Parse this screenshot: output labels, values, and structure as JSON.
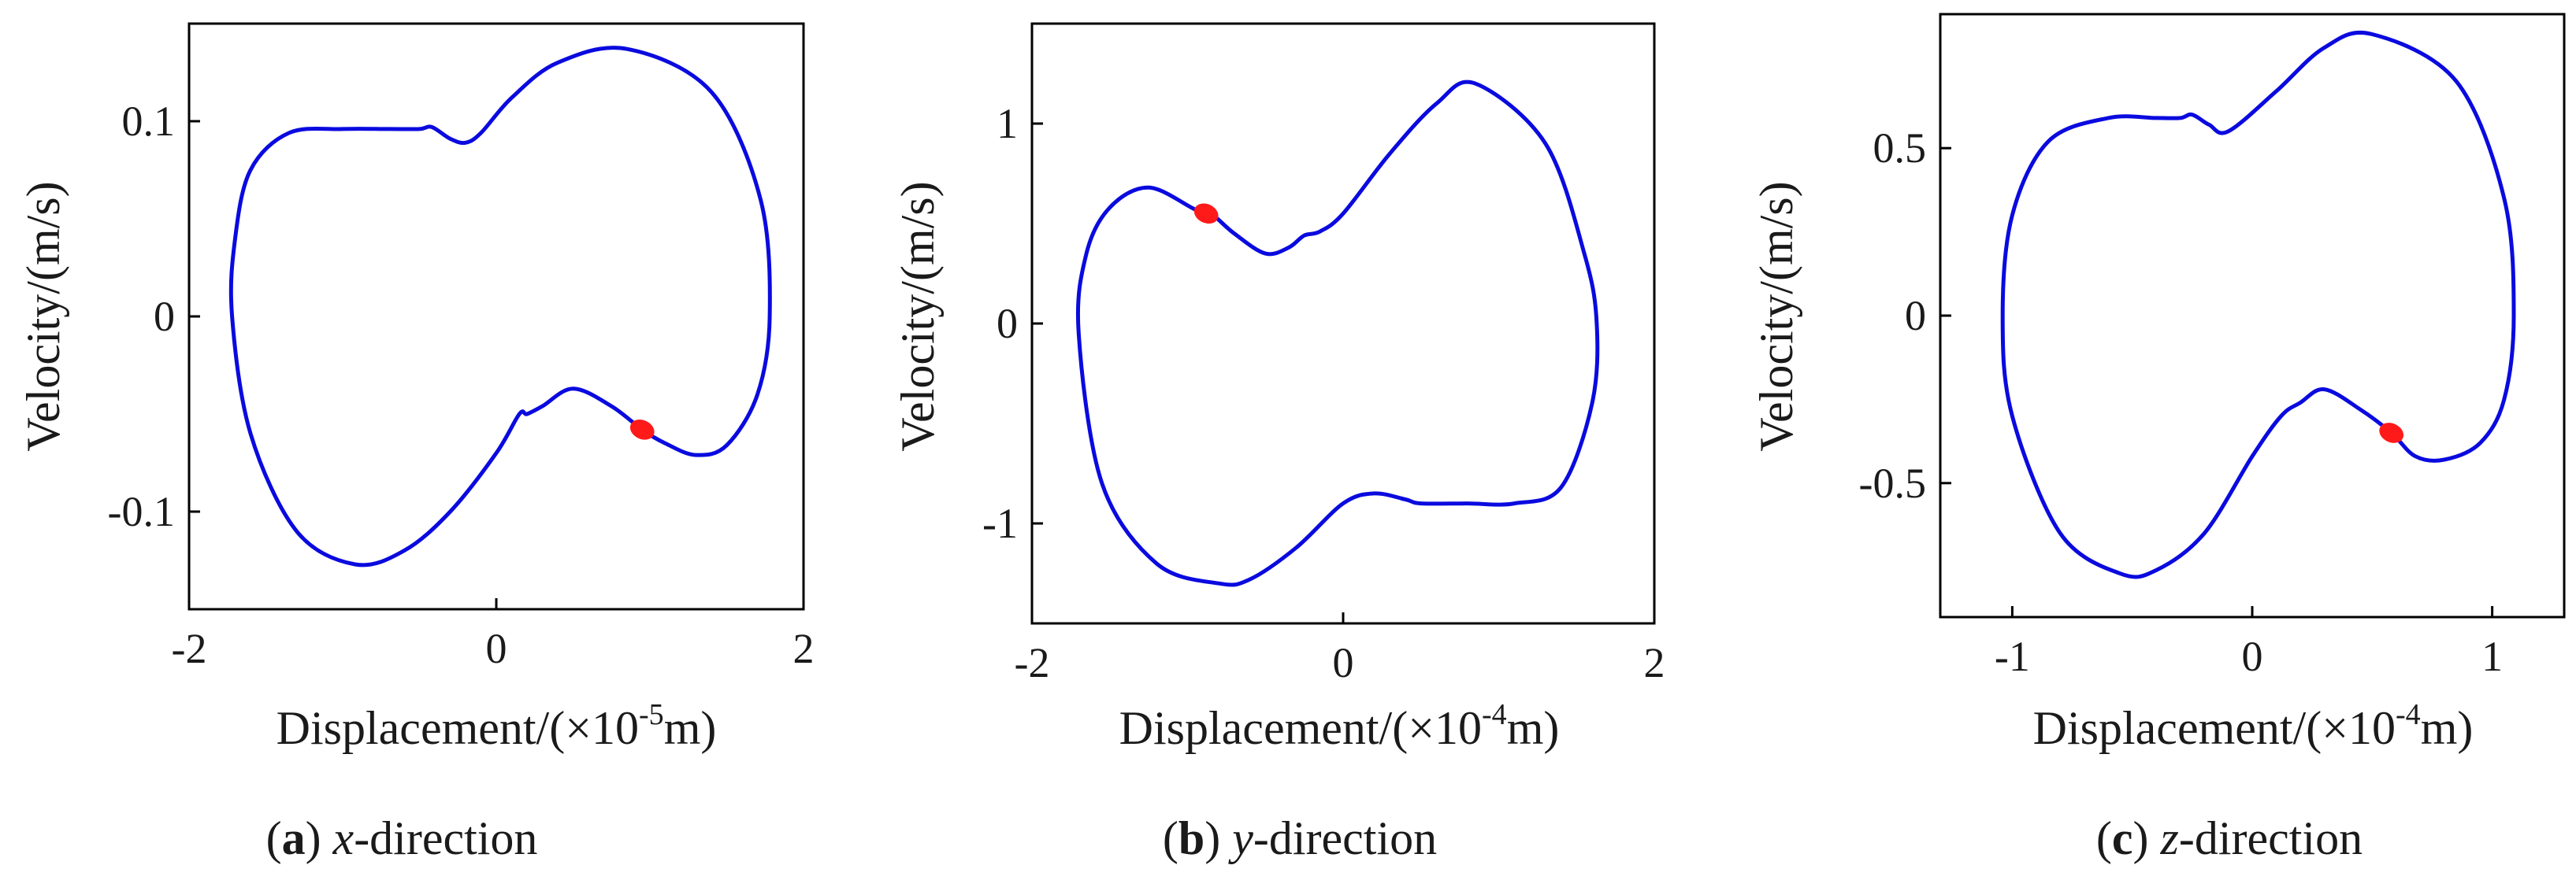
{
  "figure": {
    "panels": [
      {
        "caption": {
          "open": "(",
          "letter": "a",
          "close": ")",
          "axis_name": "x",
          "suffix": "-direction"
        }
      },
      {
        "caption": {
          "open": "(",
          "letter": "b",
          "close": ")",
          "axis_name": "y",
          "suffix": "-direction"
        }
      },
      {
        "caption": {
          "open": "(",
          "letter": "c",
          "close": ")",
          "axis_name": "z",
          "suffix": "-direction"
        }
      }
    ]
  },
  "colors": {
    "trajectory": "#0a0adf",
    "marker": "#ff1a1a",
    "frame": "#000000"
  },
  "chart_data": [
    {
      "type": "line",
      "title": "",
      "xlabel": {
        "base": "Displacement/(×10",
        "exp": "-5",
        "unit": "m)"
      },
      "ylabel": "Velocity/(m/s)",
      "xlim": [
        -2,
        2
      ],
      "ylim": [
        -0.15,
        0.15
      ],
      "xticks": [
        -2,
        0,
        2
      ],
      "xtick_labels": [
        "-2",
        "0",
        "2"
      ],
      "yticks": [
        -0.1,
        0,
        0.1
      ],
      "ytick_labels": [
        "-0.1",
        "0",
        "0.1"
      ],
      "series": [
        {
          "closed": true,
          "x": [
            0.85,
            1.4,
            1.72,
            1.78,
            1.7,
            1.5,
            1.3,
            1.1,
            0.95,
            0.75,
            0.5,
            0.3,
            0.2,
            0.15,
            0.0,
            -0.3,
            -0.6,
            -0.92,
            -1.3,
            -1.6,
            -1.72,
            -1.7,
            -1.6,
            -1.35,
            -1.0,
            -0.7,
            -0.5,
            -0.42,
            -0.3,
            -0.2,
            -0.1,
            0.1,
            0.4
          ],
          "y": [
            0.137,
            0.115,
            0.06,
            0.0,
            -0.04,
            -0.066,
            -0.071,
            -0.065,
            -0.058,
            -0.046,
            -0.037,
            -0.046,
            -0.05,
            -0.05,
            -0.07,
            -0.1,
            -0.12,
            -0.127,
            -0.11,
            -0.06,
            0.0,
            0.04,
            0.075,
            0.094,
            0.096,
            0.096,
            0.096,
            0.097,
            0.091,
            0.089,
            0.094,
            0.112,
            0.13
          ]
        }
      ],
      "markers": [
        {
          "x": 0.95,
          "y": -0.058
        }
      ]
    },
    {
      "type": "line",
      "title": "",
      "xlabel": {
        "base": "Displacement/(×10",
        "exp": "-4",
        "unit": "m)"
      },
      "ylabel": "Velocity/(m/s)",
      "xlim": [
        -2,
        2
      ],
      "ylim": [
        -1.5,
        1.5
      ],
      "xticks": [
        -2,
        0,
        2
      ],
      "xtick_labels": [
        "-2",
        "0",
        "2"
      ],
      "yticks": [
        -1,
        0,
        1
      ],
      "ytick_labels": [
        "-1",
        "0",
        "1"
      ],
      "series": [
        {
          "closed": true,
          "x": [
            0.85,
            1.3,
            1.55,
            1.63,
            1.6,
            1.4,
            1.1,
            0.8,
            0.5,
            0.4,
            0.2,
            0.0,
            -0.3,
            -0.6,
            -0.8,
            -1.2,
            -1.55,
            -1.7,
            -1.65,
            -1.5,
            -1.25,
            -0.95,
            -0.85,
            -0.7,
            -0.5,
            -0.35,
            -0.25,
            -0.15,
            0.0,
            0.3,
            0.6
          ],
          "y": [
            1.2,
            0.9,
            0.35,
            0.0,
            -0.4,
            -0.82,
            -0.9,
            -0.9,
            -0.9,
            -0.88,
            -0.85,
            -0.9,
            -1.12,
            -1.28,
            -1.3,
            -1.2,
            -0.8,
            -0.05,
            0.35,
            0.58,
            0.68,
            0.57,
            0.55,
            0.45,
            0.35,
            0.38,
            0.44,
            0.46,
            0.55,
            0.85,
            1.1
          ]
        }
      ],
      "markers": [
        {
          "x": -0.88,
          "y": 0.55
        }
      ]
    },
    {
      "type": "line",
      "title": "",
      "xlabel": {
        "base": "Displacement/(×10",
        "exp": "-4",
        "unit": "m)"
      },
      "ylabel": "Velocity/(m/s)",
      "xlim": [
        -1.3,
        1.3
      ],
      "ylim": [
        -0.9,
        0.9
      ],
      "xticks": [
        -1,
        0,
        1
      ],
      "xtick_labels": [
        "-1",
        "0",
        "1"
      ],
      "yticks": [
        -0.5,
        0,
        0.5
      ],
      "ytick_labels": [
        "-0.5",
        "0",
        "0.5"
      ],
      "series": [
        {
          "closed": true,
          "x": [
            0.5,
            0.85,
            1.05,
            1.09,
            1.05,
            0.95,
            0.8,
            0.68,
            0.58,
            0.45,
            0.3,
            0.2,
            0.12,
            0.0,
            -0.2,
            -0.4,
            -0.55,
            -0.8,
            -1.0,
            -1.04,
            -1.0,
            -0.85,
            -0.6,
            -0.4,
            -0.3,
            -0.25,
            -0.18,
            -0.1,
            0.1,
            0.3
          ],
          "y": [
            0.84,
            0.7,
            0.35,
            0.0,
            -0.25,
            -0.38,
            -0.43,
            -0.42,
            -0.35,
            -0.28,
            -0.22,
            -0.26,
            -0.3,
            -0.42,
            -0.65,
            -0.76,
            -0.77,
            -0.65,
            -0.3,
            0.0,
            0.3,
            0.52,
            0.59,
            0.59,
            0.59,
            0.6,
            0.57,
            0.55,
            0.67,
            0.8
          ]
        }
      ],
      "markers": [
        {
          "x": 0.58,
          "y": -0.35
        }
      ]
    }
  ]
}
